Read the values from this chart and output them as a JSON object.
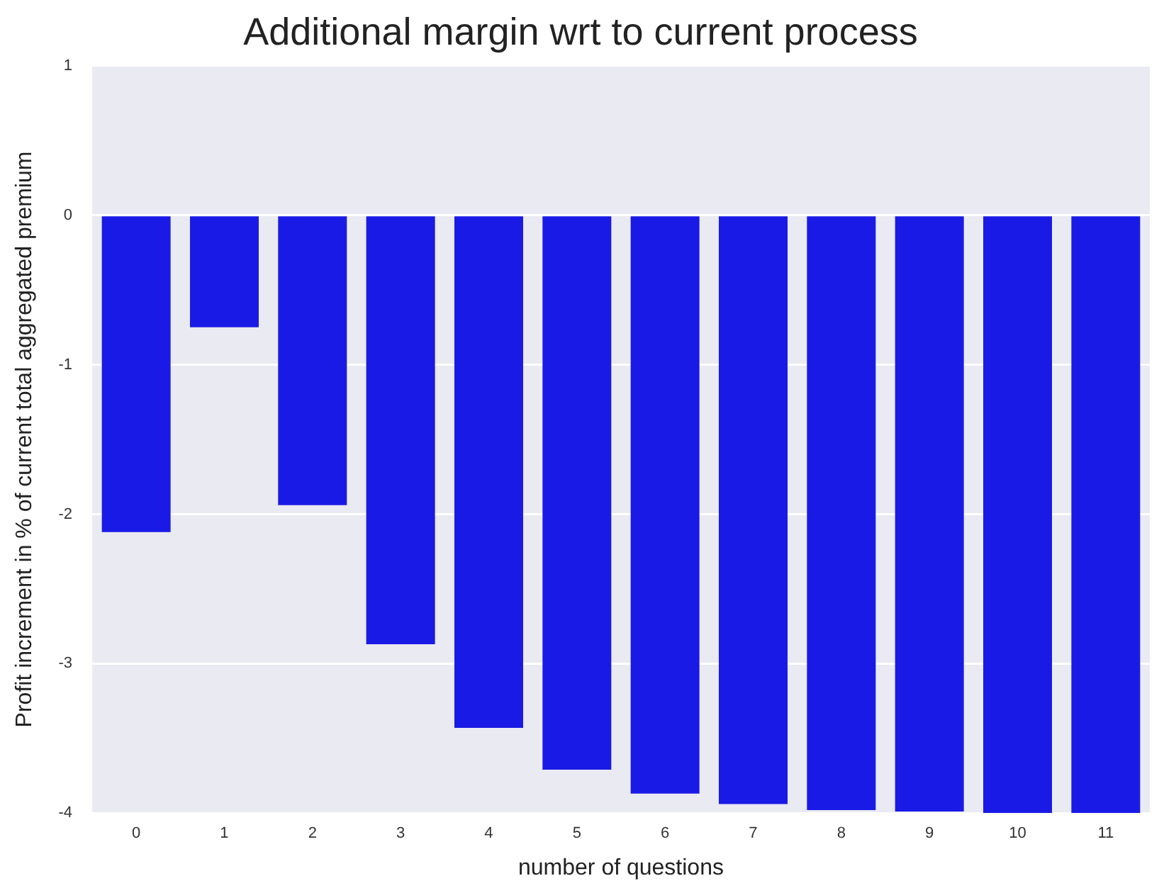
{
  "chart_data": {
    "type": "bar",
    "title": "Additional margin wrt to current process",
    "xlabel": "number of questions",
    "ylabel": "Profit increment in % of current total aggregated premium",
    "categories": [
      "0",
      "1",
      "2",
      "3",
      "4",
      "5",
      "6",
      "7",
      "8",
      "9",
      "10",
      "11"
    ],
    "values": [
      -2.12,
      -0.75,
      -1.94,
      -2.87,
      -3.43,
      -3.71,
      -3.87,
      -3.94,
      -3.98,
      -3.99,
      -4.0,
      -4.0
    ],
    "color": "#1a1ae6",
    "ylim": [
      -4,
      1
    ],
    "yticks": [
      -4,
      -3,
      -2,
      -1,
      0,
      1
    ],
    "grid": "y",
    "legend": false
  }
}
